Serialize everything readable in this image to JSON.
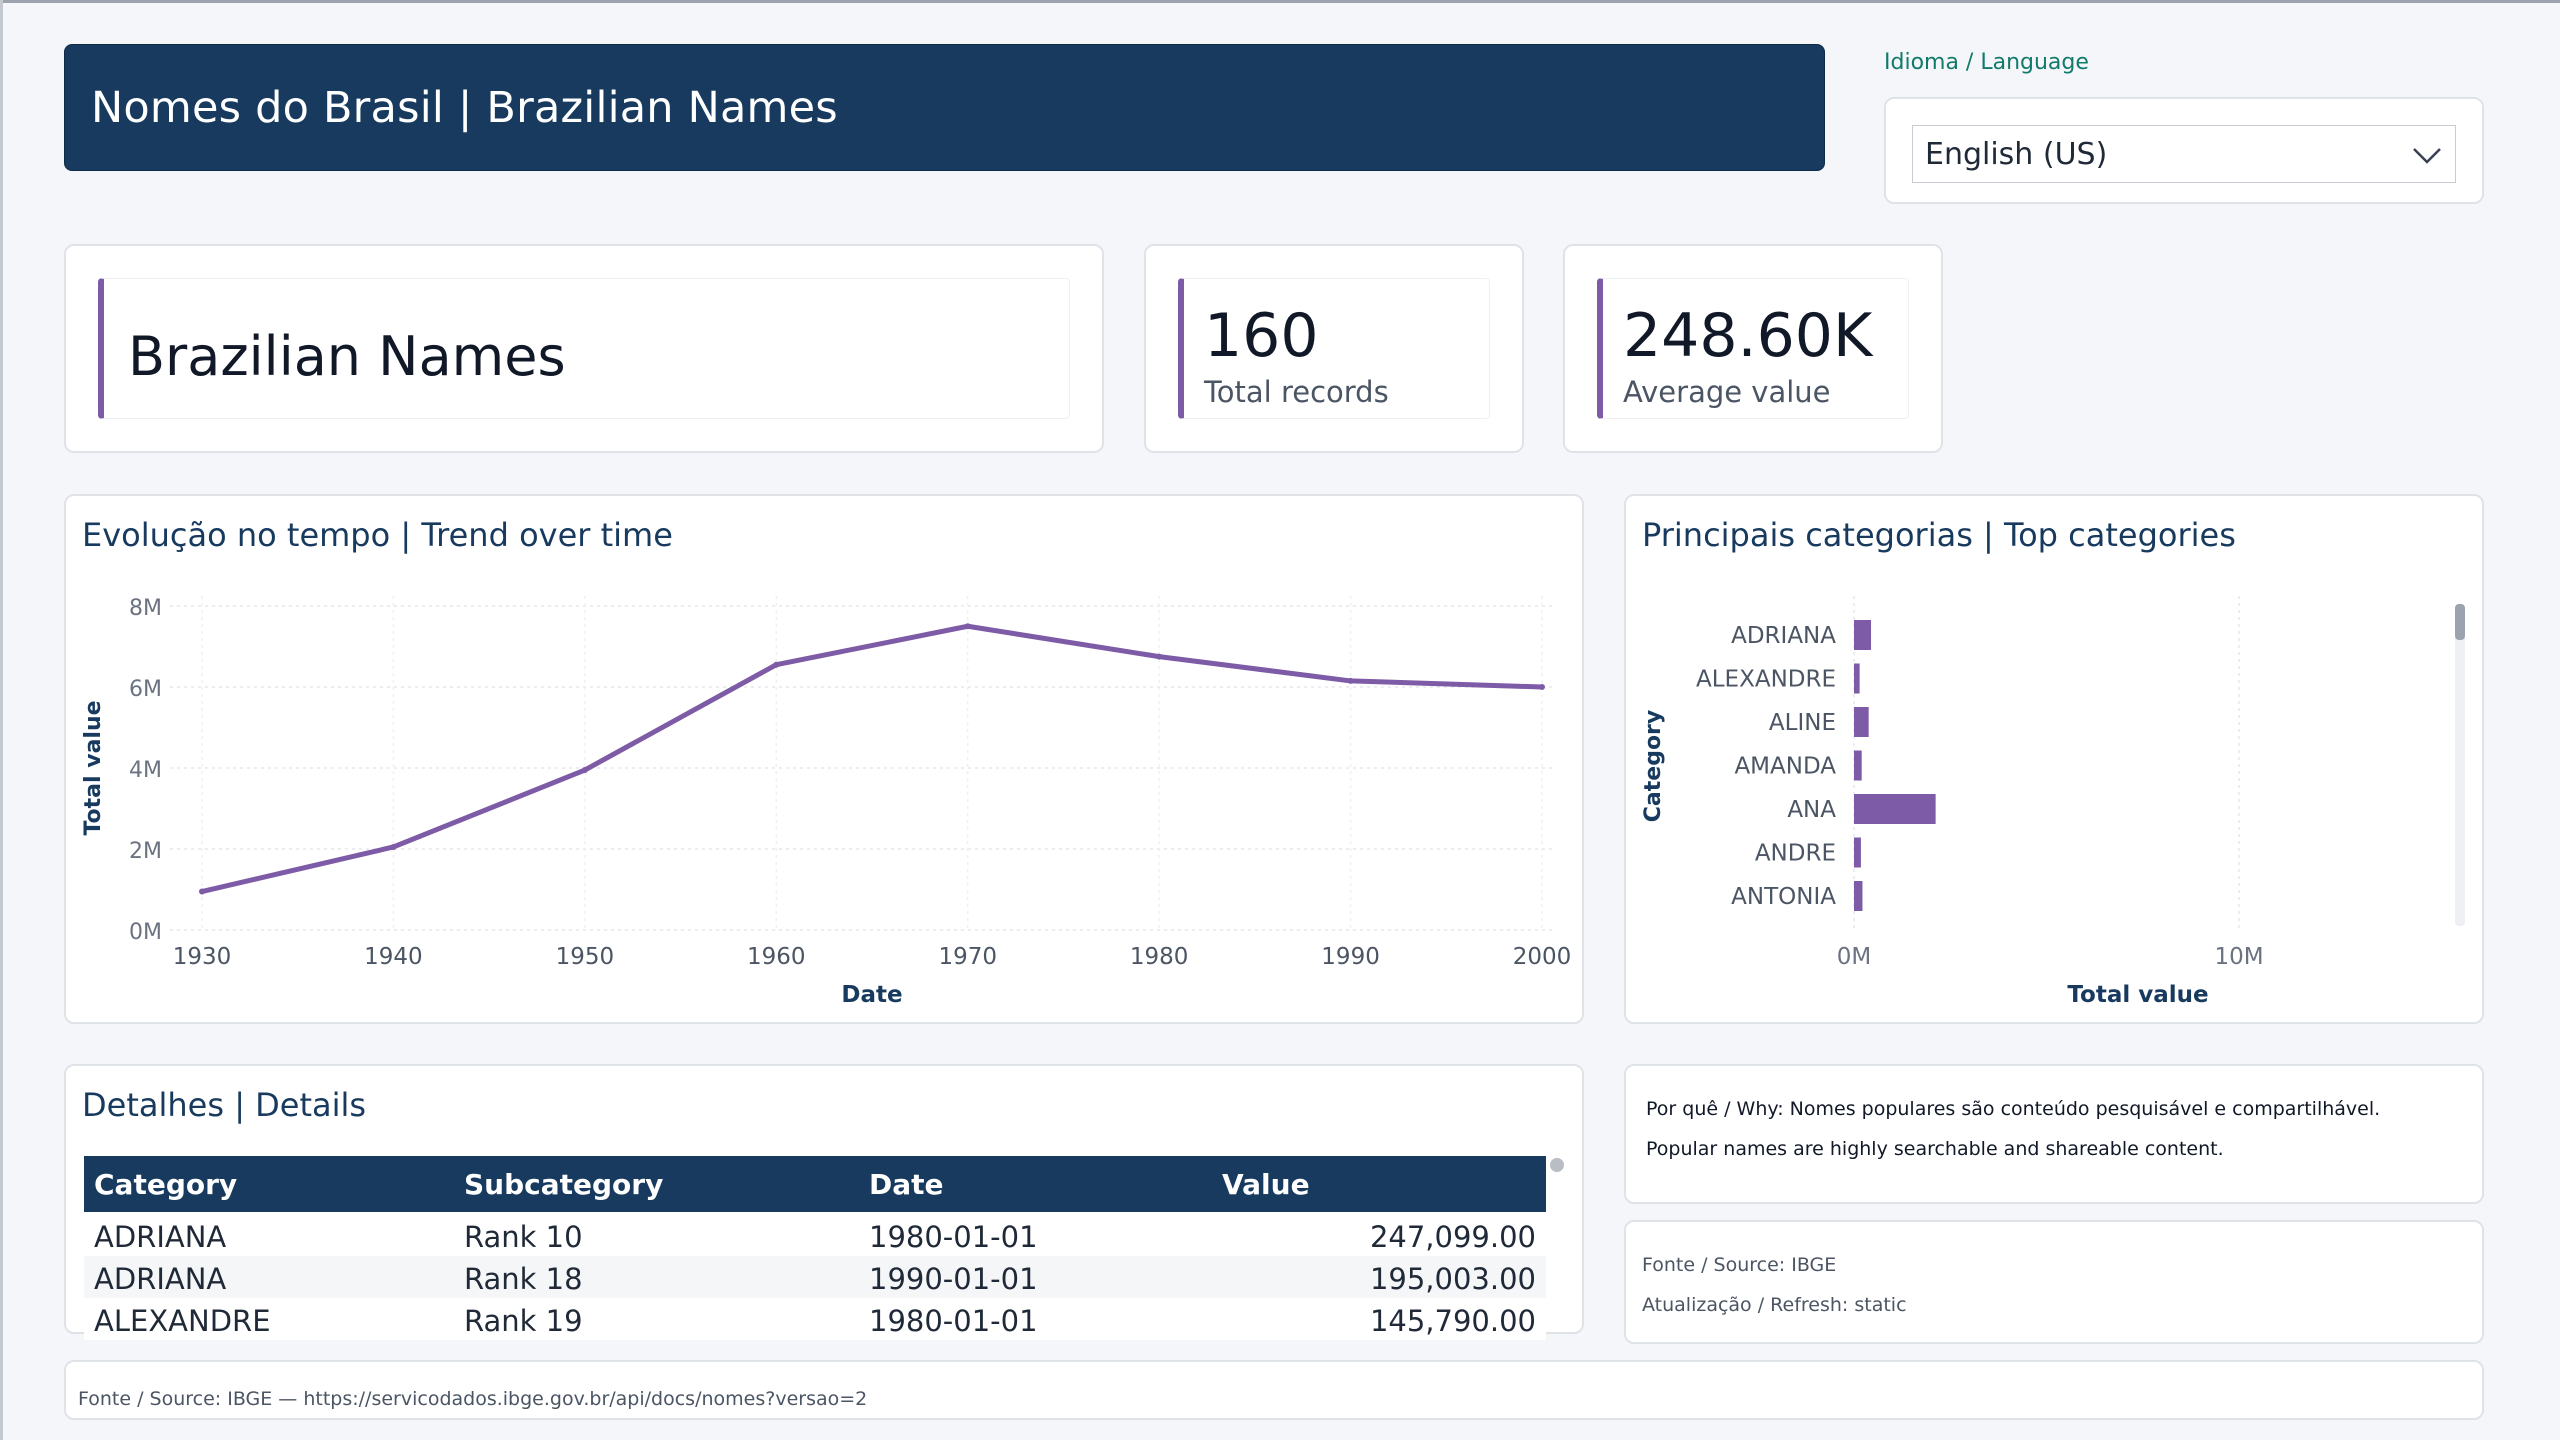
{
  "header": {
    "title": "Nomes do Brasil | Brazilian Names"
  },
  "language": {
    "label": "Idioma / Language",
    "selected": "English (US)"
  },
  "kpis": {
    "title": "Brazilian Names",
    "records": {
      "value": "160",
      "label": "Total records"
    },
    "average": {
      "value": "248.60K",
      "label": "Average value"
    }
  },
  "trend": {
    "title": "Evolução no tempo | Trend over time",
    "chart_data": {
      "type": "line",
      "title": "Evolução no tempo | Trend over time",
      "xlabel": "Date",
      "ylabel": "Total value",
      "x": [
        1930,
        1940,
        1950,
        1960,
        1970,
        1980,
        1990,
        2000
      ],
      "values": [
        0.95,
        2.05,
        3.95,
        6.55,
        7.5,
        6.75,
        6.15,
        6.0
      ],
      "value_unit": "millions",
      "ylim": [
        0,
        8
      ],
      "y_ticks": [
        "0M",
        "2M",
        "4M",
        "6M",
        "8M"
      ],
      "x_ticks": [
        "1930",
        "1940",
        "1950",
        "1960",
        "1970",
        "1980",
        "1990",
        "2000"
      ],
      "grid": true,
      "color": "#7d5ba6"
    }
  },
  "categories": {
    "title": "Principais categorias | Top categories",
    "chart_data": {
      "type": "bar",
      "orientation": "horizontal",
      "title": "Principais categorias | Top categories",
      "xlabel": "Total value",
      "ylabel": "Category",
      "categories": [
        "ADRIANA",
        "ALEXANDRE",
        "ALINE",
        "AMANDA",
        "ANA",
        "ANDRE",
        "ANTONIA"
      ],
      "values": [
        0.442,
        0.146,
        0.381,
        0.2,
        2.12,
        0.18,
        0.22
      ],
      "value_unit": "millions",
      "xlim": [
        0,
        20
      ],
      "x_ticks": [
        "0M",
        "10M"
      ],
      "grid": true,
      "color": "#7d5ba6"
    }
  },
  "details": {
    "title": "Detalhes | Details",
    "columns": [
      "Category",
      "Subcategory",
      "Date",
      "Value"
    ],
    "rows": [
      [
        "ADRIANA",
        "Rank 10",
        "1980-01-01",
        "247,099.00"
      ],
      [
        "ADRIANA",
        "Rank 18",
        "1990-01-01",
        "195,003.00"
      ],
      [
        "ALEXANDRE",
        "Rank 19",
        "1980-01-01",
        "145,790.00"
      ]
    ]
  },
  "why": {
    "line1": "Por quê / Why: Nomes populares são conteúdo pesquisável e compartilhável.",
    "line2": "Popular names are highly searchable and shareable content."
  },
  "meta": {
    "source": "Fonte / Source: IBGE",
    "refresh": "Atualização / Refresh: static"
  },
  "footer": {
    "text": "Fonte / Source: IBGE — https://servicodados.ibge.gov.br/api/docs/nomes?versao=2"
  },
  "colors": {
    "brand": "#173a5e",
    "accent": "#7d5ba6",
    "label": "#127a6a"
  }
}
